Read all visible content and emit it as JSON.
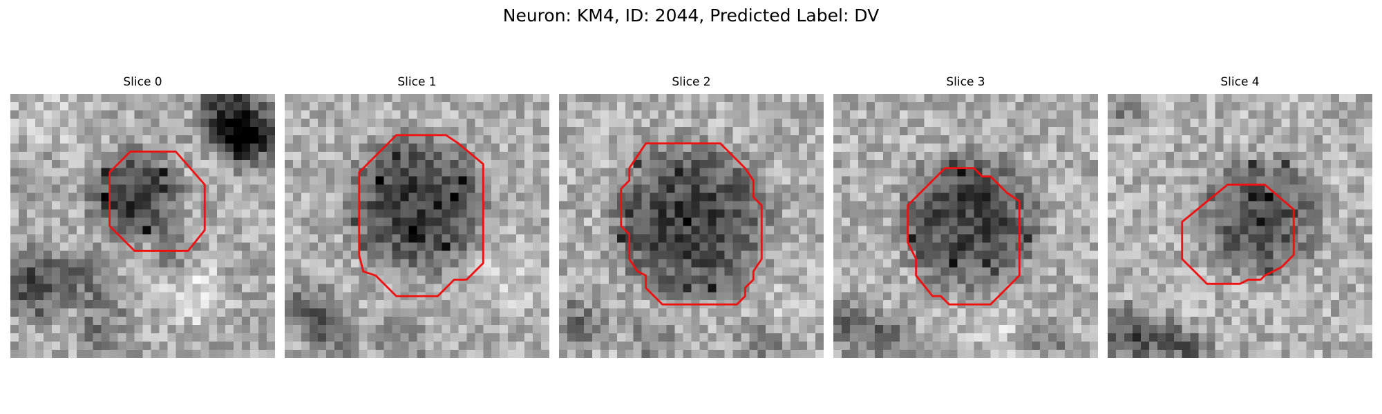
{
  "figure": {
    "title": "Neuron: KM4, ID: 2044, Predicted Label: DV"
  },
  "panels": [
    {
      "title": "Slice 0"
    },
    {
      "title": "Slice 1"
    },
    {
      "title": "Slice 2"
    },
    {
      "title": "Slice 3"
    },
    {
      "title": "Slice 4"
    }
  ],
  "colors": {
    "contour": "#ee1111",
    "colormap": "gray"
  }
}
